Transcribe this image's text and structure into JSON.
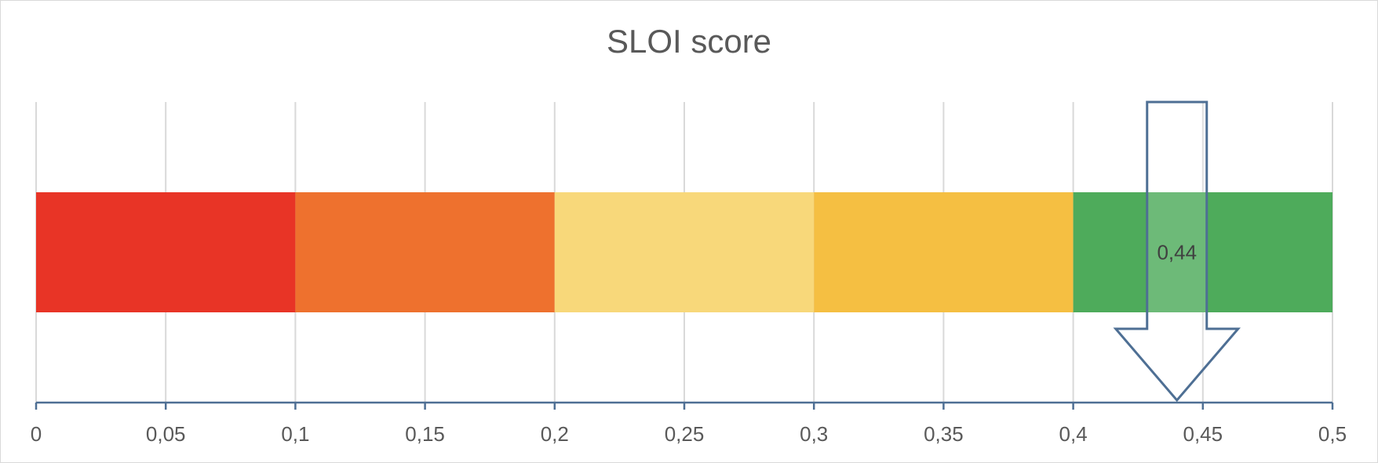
{
  "chart_data": {
    "type": "bar",
    "orientation": "horizontal",
    "stacked": true,
    "title": "SLOI score",
    "xlim": [
      0,
      0.5
    ],
    "x_ticks": [
      0,
      0.05,
      0.1,
      0.15,
      0.2,
      0.25,
      0.3,
      0.35,
      0.4,
      0.45,
      0.5
    ],
    "x_tick_labels": [
      "0",
      "0,05",
      "0,1",
      "0,15",
      "0,2",
      "0,25",
      "0,3",
      "0,35",
      "0,4",
      "0,45",
      "0,5"
    ],
    "grid": true,
    "segments": [
      {
        "start": 0,
        "end": 0.1,
        "color": "#E83426"
      },
      {
        "start": 0.1,
        "end": 0.2,
        "color": "#EE712E"
      },
      {
        "start": 0.2,
        "end": 0.3,
        "color": "#F8D87A"
      },
      {
        "start": 0.3,
        "end": 0.4,
        "color": "#F5BF42"
      },
      {
        "start": 0.4,
        "end": 0.5,
        "color": "#4EAB5B"
      }
    ],
    "marker": {
      "value": 0.44,
      "label": "0,44",
      "shape": "down-arrow",
      "outline_color": "#4E6F94"
    }
  },
  "colors": {
    "axis": "#4E6F94",
    "grid": "#D9D9D9",
    "text": "#595959"
  }
}
